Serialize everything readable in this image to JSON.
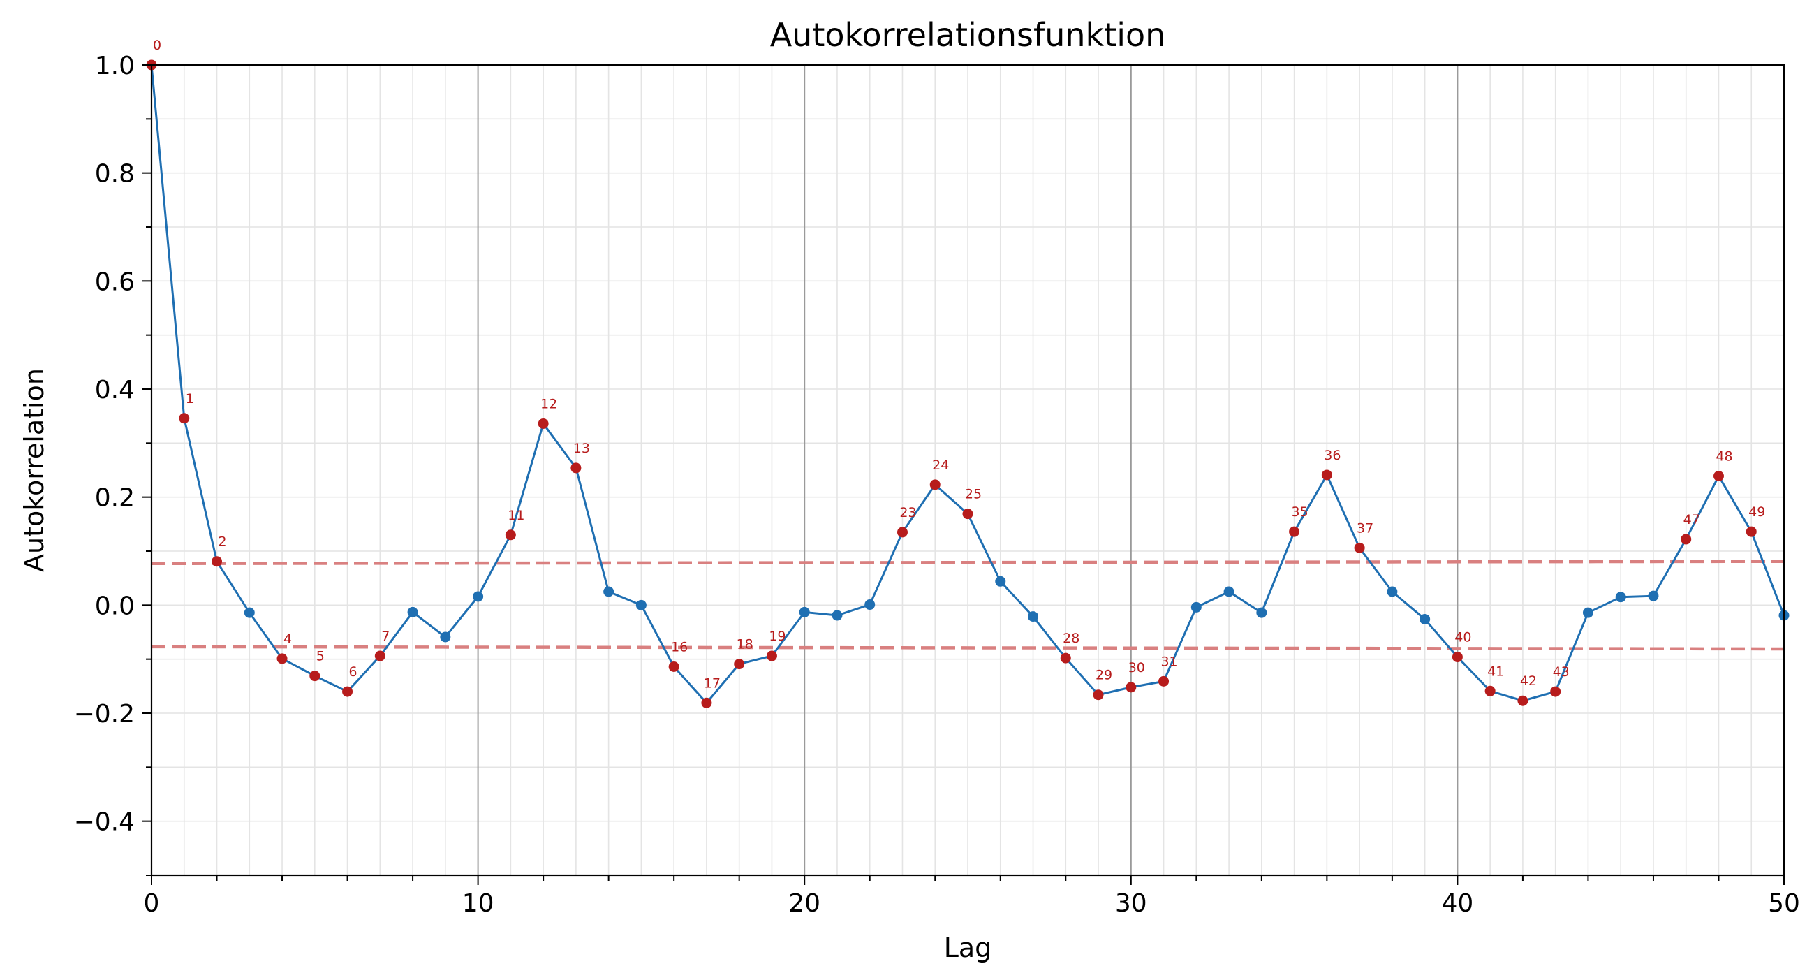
{
  "chart_data": {
    "type": "line",
    "title": "Autokorrelationsfunktion",
    "xlabel": "Lag",
    "ylabel": "Autokorrelation",
    "xlim": [
      0,
      50
    ],
    "ylim": [
      -0.5,
      1.0
    ],
    "xticks": [
      0,
      10,
      20,
      30,
      40,
      50
    ],
    "yticks": [
      -0.4,
      -0.2,
      0.0,
      0.2,
      0.4,
      0.6,
      0.8,
      1.0
    ],
    "ytick_labels": [
      "−0.4",
      "−0.2",
      "0.0",
      "0.2",
      "0.4",
      "0.6",
      "0.8",
      "1.0"
    ],
    "grid": true,
    "colors": {
      "line": "#1f6fb2",
      "significant": "#b71c1c",
      "bounds": "#d98080",
      "major_grid": "#9a9a9a",
      "minor_grid": "#e4e4e4"
    },
    "series": [
      {
        "x": [
          0,
          1,
          2,
          3,
          4,
          5,
          6,
          7,
          8,
          9,
          10,
          11,
          12,
          13,
          14,
          15,
          16,
          17,
          18,
          19,
          20,
          21,
          22,
          23,
          24,
          25,
          26,
          27,
          28,
          29,
          30,
          31,
          32,
          33,
          34,
          35,
          36,
          37,
          38,
          39,
          40,
          41,
          42,
          43,
          44,
          45,
          46,
          47,
          48,
          49,
          50
        ],
        "values": [
          1.0,
          0.346,
          0.081,
          -0.014,
          -0.099,
          -0.131,
          -0.16,
          -0.094,
          -0.013,
          -0.059,
          0.016,
          0.13,
          0.336,
          0.254,
          0.025,
          0.0,
          -0.114,
          -0.181,
          -0.109,
          -0.094,
          -0.013,
          -0.019,
          0.001,
          0.135,
          0.223,
          0.169,
          0.044,
          -0.021,
          -0.098,
          -0.166,
          -0.152,
          -0.141,
          -0.004,
          0.025,
          -0.014,
          0.136,
          0.241,
          0.106,
          0.025,
          -0.026,
          -0.096,
          -0.159,
          -0.177,
          -0.16,
          -0.014,
          0.015,
          0.017,
          0.122,
          0.239,
          0.136,
          -0.019
        ]
      }
    ],
    "significant_lags": [
      0,
      1,
      2,
      4,
      5,
      6,
      7,
      11,
      12,
      13,
      16,
      17,
      18,
      19,
      23,
      24,
      25,
      28,
      29,
      30,
      31,
      35,
      36,
      37,
      40,
      41,
      42,
      43,
      47,
      48,
      49
    ],
    "confidence_bounds": {
      "upper": [
        0.077,
        0.081
      ],
      "lower": [
        -0.077,
        -0.081
      ]
    }
  }
}
